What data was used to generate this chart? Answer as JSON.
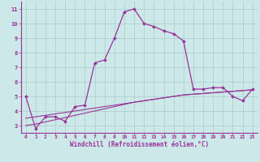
{
  "xlabel": "Windchill (Refroidissement éolien,°C)",
  "x": [
    0,
    1,
    2,
    3,
    4,
    5,
    6,
    7,
    8,
    9,
    10,
    11,
    12,
    13,
    14,
    15,
    16,
    17,
    18,
    19,
    20,
    21,
    22,
    23
  ],
  "y_main": [
    5.0,
    2.8,
    3.6,
    3.6,
    3.3,
    4.3,
    4.4,
    7.3,
    7.5,
    9.0,
    10.8,
    11.0,
    10.0,
    9.8,
    9.5,
    9.3,
    8.8,
    5.5,
    5.5,
    5.6,
    5.6,
    5.0,
    4.7,
    5.5
  ],
  "y_line1": [
    3.5,
    3.6,
    3.7,
    3.8,
    3.9,
    4.0,
    4.1,
    4.2,
    4.3,
    4.4,
    4.5,
    4.6,
    4.7,
    4.8,
    4.9,
    5.0,
    5.1,
    5.15,
    5.2,
    5.25,
    5.3,
    5.35,
    5.4,
    5.45
  ],
  "y_line2": [
    3.0,
    3.1,
    3.25,
    3.4,
    3.55,
    3.7,
    3.85,
    4.0,
    4.15,
    4.3,
    4.45,
    4.6,
    4.7,
    4.8,
    4.9,
    5.0,
    5.1,
    5.15,
    5.2,
    5.25,
    5.3,
    5.35,
    5.4,
    5.45
  ],
  "line_color": "#993399",
  "bg_color": "#cce8e8",
  "grid_color": "#aacccc",
  "ylim": [
    2.5,
    11.5
  ],
  "xlim": [
    -0.5,
    23.5
  ],
  "yticks": [
    3,
    4,
    5,
    6,
    7,
    8,
    9,
    10,
    11
  ],
  "xticks": [
    0,
    1,
    2,
    3,
    4,
    5,
    6,
    7,
    8,
    9,
    10,
    11,
    12,
    13,
    14,
    15,
    16,
    17,
    18,
    19,
    20,
    21,
    22,
    23
  ]
}
